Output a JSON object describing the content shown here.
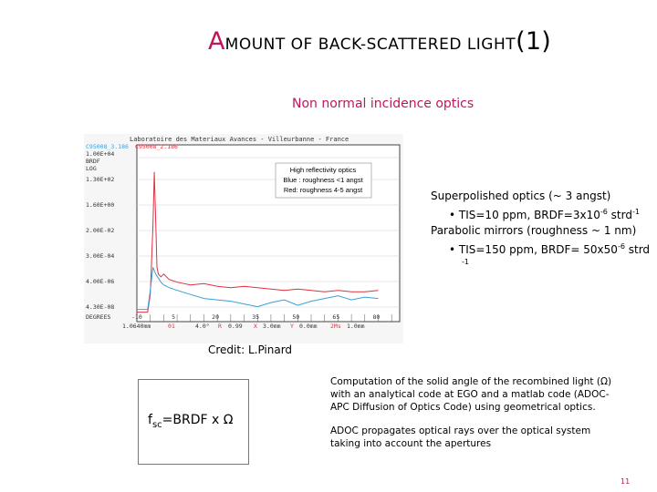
{
  "slide": {
    "title_cap": "A",
    "title_rest": "MOUNT OF BACK-SCATTERED LIGHT",
    "title_suffix": "(1)",
    "subtitle": "Non normal incidence optics",
    "credit": "Credit: L.Pinard",
    "formula_main": "f",
    "formula_sub": "sc",
    "formula_rest": "=BRDF x Ω",
    "page_number": "11"
  },
  "right_text": {
    "line1": "Superpolished optics (~ 3 angst)",
    "line2_prefix": "• TIS=10 ppm, BRDF=3x10",
    "line2_exp": "-6",
    "line2_mid": " strd",
    "line2_exp2": "-1",
    "line3": "Parabolic mirrors (roughness ~ 1 nm)",
    "line4_prefix": "• TIS=150 ppm, BRDF= 50x50",
    "line4_exp": "-6",
    "line4_suffix": " strd",
    "line5": "-1"
  },
  "bottom_text": {
    "para1": "Computation of the solid angle of the recombined light (Ω) with an analytical code at EGO and a matlab code (ADOC-APC Diffusion of Optics Code) using geometrical optics.",
    "para2": "ADOC propagates optical rays over the optical system taking into account the apertures"
  },
  "chart_data": {
    "type": "line",
    "header": "Laboratoire des Materiaux Avances - Villeurbanne - France",
    "legend_tags": [
      "C95008_3.186",
      "C95008_2.186"
    ],
    "legend_box": [
      "High reflectivity optics",
      "Blue : roughness <1 angst",
      "Red: roughness  4-5 angst"
    ],
    "y_tick_labels": [
      "1.00E+04",
      "BRDF",
      "LOG",
      "1.30E+02",
      "1.60E+00",
      "2.00E-02",
      "3.00E-04",
      "4.00E-06",
      "4.30E-08"
    ],
    "x_axis_labels": [
      "DEGREES",
      "-10",
      "5",
      "20",
      "35",
      "50",
      "65",
      "80"
    ],
    "bottom_readout": [
      "1.0640mm",
      "01",
      "4.0°",
      "R",
      "0.99",
      "X",
      "3.0mm",
      "Y",
      "0.0mm",
      "2Ms",
      "1.0mm"
    ],
    "series": [
      {
        "name": "",
        "color": "#e03040",
        "x": [
          -10,
          -6,
          -5,
          -4,
          -3.5,
          -3,
          -2.5,
          -2,
          -1,
          0,
          2,
          5,
          10,
          15,
          20,
          25,
          30,
          35,
          40,
          45,
          50,
          55,
          60,
          65,
          70,
          75,
          80
        ],
        "y": [
          -7.8,
          -7.8,
          -6.5,
          -1.5,
          2.5,
          -1.0,
          -4.5,
          -5.0,
          -5.2,
          -5.0,
          -5.4,
          -5.6,
          -5.8,
          -5.7,
          -5.9,
          -6.0,
          -5.9,
          -6.0,
          -6.1,
          -6.2,
          -6.1,
          -6.2,
          -6.3,
          -6.2,
          -6.3,
          -6.3,
          -6.2
        ]
      },
      {
        "name": "",
        "color": "#3aa0d8",
        "x": [
          -10,
          -6,
          -5,
          -4,
          -3,
          -2,
          -1,
          0,
          2,
          5,
          10,
          15,
          20,
          25,
          30,
          35,
          40,
          45,
          50,
          55,
          60,
          65,
          70,
          75,
          80
        ],
        "y": [
          -7.6,
          -7.6,
          -6.2,
          -4.5,
          -5.0,
          -5.3,
          -5.6,
          -5.8,
          -6.0,
          -6.2,
          -6.5,
          -6.8,
          -6.9,
          -7.0,
          -7.2,
          -7.4,
          -7.1,
          -6.9,
          -7.3,
          -7.0,
          -6.8,
          -6.6,
          -6.9,
          -6.7,
          -6.8
        ]
      }
    ],
    "xlim": [
      -10,
      88
    ],
    "ylim": [
      -8.5,
      4.5
    ]
  }
}
